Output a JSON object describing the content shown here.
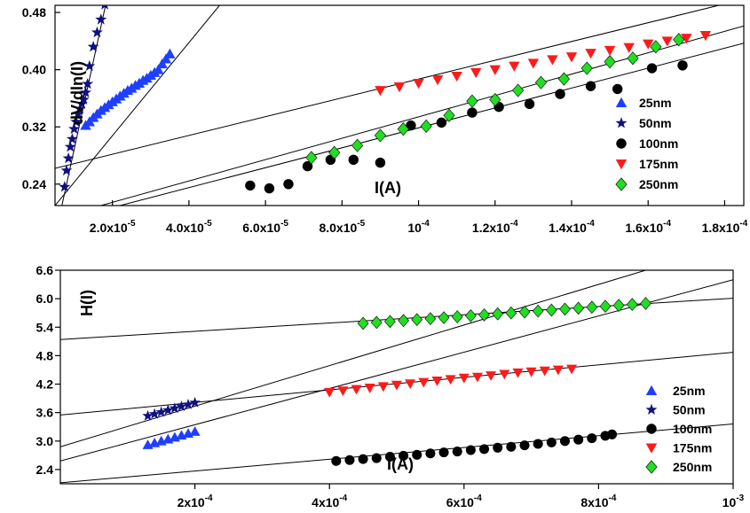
{
  "chart_data": [
    {
      "type": "scatter",
      "xlabel": "I(A)",
      "ylabel": "dV/dln(I)",
      "xlim": [
        5e-06,
        0.000185
      ],
      "ylim": [
        0.21,
        0.49
      ],
      "x_ticks": [
        {
          "value": 2e-05,
          "label": "2.0x10-5",
          "base": "2.0x10",
          "exp": "-5"
        },
        {
          "value": 4e-05,
          "label": "4.0x10-5",
          "base": "4.0x10",
          "exp": "-5"
        },
        {
          "value": 6e-05,
          "label": "6.0x10-5",
          "base": "6.0x10",
          "exp": "-5"
        },
        {
          "value": 8e-05,
          "label": "8.0x10-5",
          "base": "8.0x10",
          "exp": "-5"
        },
        {
          "value": 0.0001,
          "label": "10-4",
          "base": "10",
          "exp": "-4"
        },
        {
          "value": 0.00012,
          "label": "1.2x10-4",
          "base": "1.2x10",
          "exp": "-4"
        },
        {
          "value": 0.00014,
          "label": "1.4x10-4",
          "base": "1.4x10",
          "exp": "-4"
        },
        {
          "value": 0.00016,
          "label": "1.6x10-4",
          "base": "1.6x10",
          "exp": "-4"
        },
        {
          "value": 0.00018,
          "label": "1.8x10-4",
          "base": "1.8x10",
          "exp": "-4"
        }
      ],
      "y_ticks": [
        {
          "value": 0.24,
          "label": "0.24"
        },
        {
          "value": 0.32,
          "label": "0.32"
        },
        {
          "value": 0.4,
          "label": "0.40"
        },
        {
          "value": 0.48,
          "label": "0.48"
        }
      ],
      "legend_position": "bottom-right",
      "series": [
        {
          "name": "25nm",
          "marker": "triangle-up",
          "color": "#1f3fff",
          "x": [
            1.3e-05,
            1.4e-05,
            1.5e-05,
            1.6e-05,
            1.7e-05,
            1.8e-05,
            1.9e-05,
            2e-05,
            2.1e-05,
            2.2e-05,
            2.3e-05,
            2.4e-05,
            2.5e-05,
            2.6e-05,
            2.7e-05,
            2.8e-05,
            2.9e-05,
            3e-05,
            3.1e-05,
            3.2e-05,
            3.3e-05,
            3.4e-05,
            3.5e-05
          ],
          "y": [
            0.322,
            0.327,
            0.333,
            0.338,
            0.343,
            0.347,
            0.351,
            0.355,
            0.359,
            0.363,
            0.367,
            0.371,
            0.374,
            0.378,
            0.381,
            0.385,
            0.388,
            0.392,
            0.396,
            0.4,
            0.408,
            0.415,
            0.422
          ]
        },
        {
          "name": "50nm",
          "marker": "star",
          "color": "#101080",
          "x": [
            7.5e-06,
            8e-06,
            8.5e-06,
            9e-06,
            9.5e-06,
            1e-05,
            1.05e-05,
            1.1e-05,
            1.15e-05,
            1.2e-05,
            1.25e-05,
            1.3e-05,
            1.35e-05,
            1.4e-05,
            1.5e-05,
            1.6e-05,
            1.7e-05,
            1.8e-05
          ],
          "y": [
            0.236,
            0.259,
            0.276,
            0.292,
            0.303,
            0.317,
            0.327,
            0.338,
            0.345,
            0.352,
            0.358,
            0.368,
            0.38,
            0.405,
            0.432,
            0.452,
            0.47,
            0.491
          ]
        },
        {
          "name": "100nm",
          "marker": "circle",
          "color": "#000000",
          "x": [
            5.6e-05,
            6.1e-05,
            6.6e-05,
            7.1e-05,
            7.7e-05,
            8.3e-05,
            9e-05,
            9.8e-05,
            0.000106,
            0.000114,
            0.000121,
            0.000129,
            0.000137,
            0.000145,
            0.000152,
            0.000161,
            0.000169
          ],
          "y": [
            0.238,
            0.234,
            0.24,
            0.265,
            0.274,
            0.274,
            0.27,
            0.322,
            0.326,
            0.34,
            0.348,
            0.352,
            0.366,
            0.377,
            0.373,
            0.402,
            0.406
          ]
        },
        {
          "name": "175nm",
          "marker": "triangle-down",
          "color": "#ff1a1a",
          "x": [
            9e-05,
            9.5e-05,
            0.0001,
            0.000105,
            0.00011,
            0.000115,
            0.00012,
            0.000125,
            0.00013,
            0.000135,
            0.00014,
            0.000145,
            0.00015,
            0.000155,
            0.00016,
            0.000165,
            0.00017,
            0.000175
          ],
          "y": [
            0.371,
            0.376,
            0.381,
            0.386,
            0.391,
            0.396,
            0.4,
            0.405,
            0.409,
            0.414,
            0.418,
            0.423,
            0.427,
            0.431,
            0.436,
            0.44,
            0.444,
            0.448
          ]
        },
        {
          "name": "250nm",
          "marker": "diamond",
          "color": "#22dd22",
          "x": [
            7.2e-05,
            7.8e-05,
            8.4e-05,
            9e-05,
            9.6e-05,
            0.000102,
            0.000108,
            0.000114,
            0.00012,
            0.000126,
            0.000132,
            0.000138,
            0.000144,
            0.00015,
            0.000156,
            0.000162,
            0.000168
          ],
          "y": [
            0.277,
            0.284,
            0.294,
            0.308,
            0.317,
            0.321,
            0.336,
            0.356,
            0.358,
            0.371,
            0.382,
            0.387,
            0.402,
            0.411,
            0.416,
            0.432,
            0.442
          ]
        }
      ],
      "fit_lines": [
        {
          "series": "50nm",
          "x1": 6.8e-06,
          "y1": 0.21,
          "x2": 1.82e-05,
          "y2": 0.49
        },
        {
          "series": "25nm",
          "x1": 5e-06,
          "y1": 0.21,
          "x2": 4.8e-05,
          "y2": 0.49
        },
        {
          "series": "175nm",
          "x1": 5e-06,
          "y1": 0.262,
          "x2": 0.0001785,
          "y2": 0.49
        },
        {
          "series": "250nm",
          "x1": 1.7e-05,
          "y1": 0.21,
          "x2": 0.000185,
          "y2": 0.461
        },
        {
          "series": "100nm",
          "x1": 2.2e-05,
          "y1": 0.21,
          "x2": 0.000185,
          "y2": 0.437
        }
      ]
    },
    {
      "type": "scatter",
      "xlabel": "I(A)",
      "ylabel": "H(I)",
      "xlim": [
        0.0,
        0.001
      ],
      "ylim": [
        2.1,
        6.6
      ],
      "x_ticks": [
        {
          "value": 0.0002,
          "label": "2x10-4",
          "base": "2x10",
          "exp": "-4"
        },
        {
          "value": 0.0004,
          "label": "4x10-4",
          "base": "4x10",
          "exp": "-4"
        },
        {
          "value": 0.0006,
          "label": "6x10-4",
          "base": "6x10",
          "exp": "-4"
        },
        {
          "value": 0.0008,
          "label": "8x10-4",
          "base": "8x10",
          "exp": "-4"
        },
        {
          "value": 0.001,
          "label": "10-3",
          "base": "10",
          "exp": "-3"
        }
      ],
      "y_ticks": [
        {
          "value": 2.4,
          "label": "2.4"
        },
        {
          "value": 3.0,
          "label": "3.0"
        },
        {
          "value": 3.6,
          "label": "3.6"
        },
        {
          "value": 4.2,
          "label": "4.2"
        },
        {
          "value": 4.8,
          "label": "4.8"
        },
        {
          "value": 5.4,
          "label": "5.4"
        },
        {
          "value": 6.0,
          "label": "6.0"
        },
        {
          "value": 6.6,
          "label": "6.6"
        }
      ],
      "legend_position": "bottom-right",
      "series": [
        {
          "name": "25nm",
          "marker": "triangle-up",
          "color": "#1f3fff",
          "x": [
            0.00013,
            0.00014,
            0.00015,
            0.00016,
            0.00017,
            0.00018,
            0.00019,
            0.0002
          ],
          "y": [
            2.92,
            2.96,
            3.0,
            3.04,
            3.08,
            3.12,
            3.16,
            3.2
          ]
        },
        {
          "name": "50nm",
          "marker": "star",
          "color": "#101080",
          "x": [
            0.00013,
            0.00014,
            0.00015,
            0.00016,
            0.00017,
            0.00018,
            0.00019,
            0.0002
          ],
          "y": [
            3.53,
            3.57,
            3.61,
            3.65,
            3.69,
            3.73,
            3.77,
            3.81
          ]
        },
        {
          "name": "100nm",
          "marker": "circle",
          "color": "#000000",
          "x": [
            0.00041,
            0.00043,
            0.00045,
            0.00047,
            0.00049,
            0.00051,
            0.00053,
            0.00055,
            0.00057,
            0.00059,
            0.00061,
            0.00063,
            0.00065,
            0.00067,
            0.00069,
            0.00071,
            0.00073,
            0.00075,
            0.00077,
            0.00079,
            0.00081,
            0.00082
          ],
          "y": [
            2.58,
            2.6,
            2.62,
            2.64,
            2.67,
            2.69,
            2.71,
            2.74,
            2.76,
            2.78,
            2.81,
            2.83,
            2.86,
            2.88,
            2.91,
            2.94,
            2.97,
            3.0,
            3.03,
            3.06,
            3.11,
            3.14
          ]
        },
        {
          "name": "175nm",
          "marker": "triangle-down",
          "color": "#ff1a1a",
          "x": [
            0.0004,
            0.00042,
            0.00044,
            0.00046,
            0.00048,
            0.0005,
            0.00052,
            0.00054,
            0.00056,
            0.00058,
            0.0006,
            0.00062,
            0.00064,
            0.00066,
            0.00068,
            0.0007,
            0.00072,
            0.00074,
            0.00076
          ],
          "y": [
            4.03,
            4.06,
            4.09,
            4.12,
            4.15,
            4.18,
            4.21,
            4.24,
            4.27,
            4.3,
            4.33,
            4.35,
            4.38,
            4.41,
            4.44,
            4.46,
            4.48,
            4.5,
            4.52
          ]
        },
        {
          "name": "250nm",
          "marker": "diamond",
          "color": "#22dd22",
          "x": [
            0.00045,
            0.00047,
            0.00049,
            0.00051,
            0.00053,
            0.00055,
            0.00057,
            0.00059,
            0.00061,
            0.00063,
            0.00065,
            0.00067,
            0.00069,
            0.00071,
            0.00073,
            0.00075,
            0.00077,
            0.00079,
            0.00081,
            0.00083,
            0.00085,
            0.00087
          ],
          "y": [
            5.48,
            5.5,
            5.52,
            5.54,
            5.56,
            5.58,
            5.6,
            5.62,
            5.64,
            5.66,
            5.68,
            5.7,
            5.72,
            5.74,
            5.76,
            5.78,
            5.8,
            5.82,
            5.84,
            5.86,
            5.88,
            5.9
          ]
        }
      ],
      "fit_lines": [
        {
          "series": "250nm",
          "x1": 0.0,
          "y1": 5.14,
          "x2": 0.001,
          "y2": 6.01
        },
        {
          "series": "50nm",
          "x1": 0.0,
          "y1": 2.88,
          "x2": 0.00087,
          "y2": 6.6
        },
        {
          "series": "25nm",
          "x1": 0.0,
          "y1": 2.58,
          "x2": 0.001,
          "y2": 6.4
        },
        {
          "series": "175nm",
          "x1": 0.0,
          "y1": 3.55,
          "x2": 0.001,
          "y2": 4.87
        },
        {
          "series": "100nm",
          "x1": 0.0,
          "y1": 2.12,
          "x2": 0.001,
          "y2": 3.36
        }
      ]
    }
  ]
}
